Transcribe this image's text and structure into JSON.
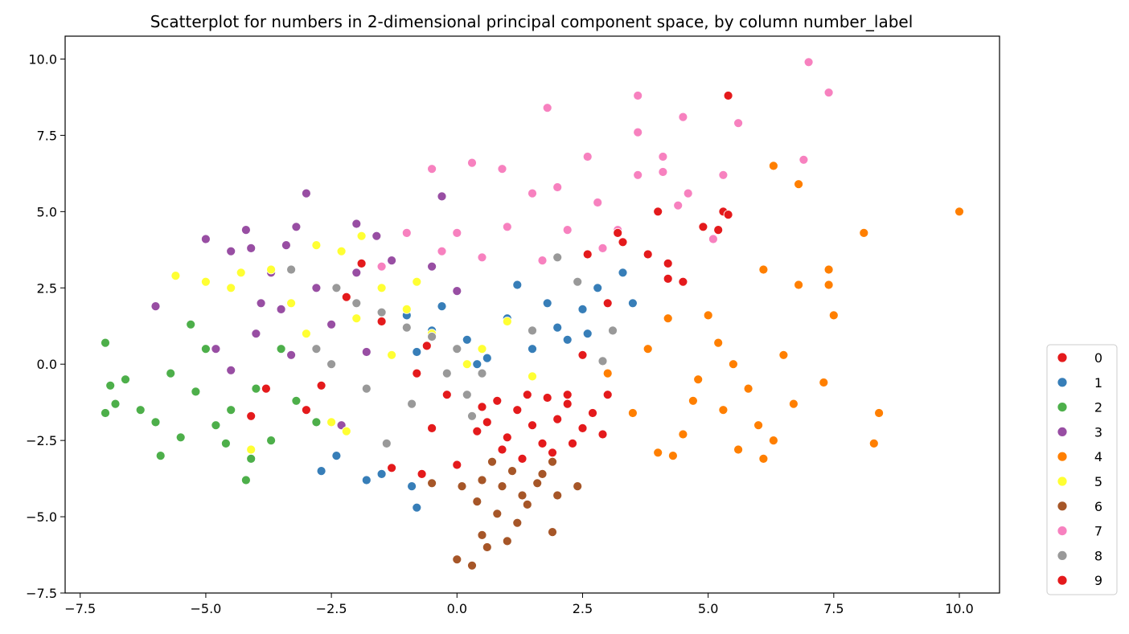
{
  "chart_data": {
    "type": "scatter",
    "title": "Scatterplot for numbers in 2-dimensional principal component space, by column number_label",
    "xlabel": "",
    "ylabel": "",
    "xlim": [
      -7.8,
      10.8
    ],
    "ylim": [
      -7.5,
      10.75
    ],
    "x_ticks": [
      -7.5,
      -5.0,
      -2.5,
      0.0,
      2.5,
      5.0,
      7.5,
      10.0
    ],
    "x_tick_labels": [
      "−7.5",
      "−5.0",
      "−2.5",
      "0.0",
      "2.5",
      "5.0",
      "7.5",
      "10.0"
    ],
    "y_ticks": [
      -7.5,
      -5.0,
      -2.5,
      0.0,
      2.5,
      5.0,
      7.5,
      10.0
    ],
    "y_tick_labels": [
      "−7.5",
      "−5.0",
      "−2.5",
      "0.0",
      "2.5",
      "5.0",
      "7.5",
      "10.0"
    ],
    "grid": false,
    "legend_position": "outside-right",
    "series": [
      {
        "name": "0",
        "color": "#e41a1c",
        "points": [
          [
            1.2,
            -1.5
          ],
          [
            1.5,
            -2.0
          ],
          [
            0.8,
            -1.2
          ],
          [
            2.0,
            -1.8
          ],
          [
            1.7,
            -2.6
          ],
          [
            0.6,
            -1.9
          ],
          [
            1.0,
            -2.4
          ],
          [
            2.2,
            -1.3
          ],
          [
            2.5,
            -2.1
          ],
          [
            1.4,
            -1.0
          ],
          [
            1.9,
            -2.9
          ],
          [
            0.9,
            -2.8
          ],
          [
            2.7,
            -1.6
          ],
          [
            0.5,
            -1.4
          ],
          [
            1.3,
            -3.1
          ],
          [
            2.3,
            -2.6
          ],
          [
            3.0,
            -1.0
          ],
          [
            0.4,
            -2.2
          ],
          [
            1.8,
            -1.1
          ],
          [
            2.9,
            -2.3
          ]
        ]
      },
      {
        "name": "1",
        "color": "#377eb8",
        "points": [
          [
            -0.5,
            1.1
          ],
          [
            0.2,
            0.8
          ],
          [
            1.0,
            1.5
          ],
          [
            1.5,
            0.5
          ],
          [
            2.0,
            1.2
          ],
          [
            2.5,
            1.8
          ],
          [
            -0.8,
            0.4
          ],
          [
            0.6,
            0.2
          ],
          [
            1.8,
            2.0
          ],
          [
            2.8,
            2.5
          ],
          [
            3.3,
            3.0
          ],
          [
            -1.0,
            1.6
          ],
          [
            -2.7,
            -3.5
          ],
          [
            -2.4,
            -3.0
          ],
          [
            -1.8,
            -3.8
          ],
          [
            -1.5,
            -3.6
          ],
          [
            -0.9,
            -4.0
          ],
          [
            -0.8,
            -4.7
          ],
          [
            0.4,
            0.0
          ],
          [
            2.2,
            0.8
          ],
          [
            3.5,
            2.0
          ],
          [
            1.2,
            2.6
          ],
          [
            -0.3,
            1.9
          ],
          [
            2.6,
            1.0
          ]
        ]
      },
      {
        "name": "2",
        "color": "#4daf4a",
        "points": [
          [
            -7.0,
            0.7
          ],
          [
            -6.9,
            -0.7
          ],
          [
            -7.0,
            -1.6
          ],
          [
            -6.6,
            -0.5
          ],
          [
            -6.0,
            -1.9
          ],
          [
            -5.9,
            -3.0
          ],
          [
            -5.5,
            -2.4
          ],
          [
            -5.0,
            0.5
          ],
          [
            -4.5,
            -1.5
          ],
          [
            -4.2,
            -3.8
          ],
          [
            -4.1,
            -3.1
          ],
          [
            -3.7,
            -2.5
          ],
          [
            -3.2,
            -1.2
          ],
          [
            -5.3,
            1.3
          ],
          [
            -4.0,
            -0.8
          ],
          [
            -6.3,
            -1.5
          ],
          [
            -5.7,
            -0.3
          ],
          [
            -4.8,
            -2.0
          ],
          [
            -3.5,
            0.5
          ],
          [
            -2.8,
            -1.9
          ],
          [
            -6.8,
            -1.3
          ],
          [
            -5.2,
            -0.9
          ],
          [
            -4.6,
            -2.6
          ]
        ]
      },
      {
        "name": "3",
        "color": "#984ea3",
        "points": [
          [
            -6.0,
            1.9
          ],
          [
            -5.0,
            4.1
          ],
          [
            -4.5,
            3.7
          ],
          [
            -4.2,
            4.4
          ],
          [
            -3.2,
            4.5
          ],
          [
            -3.0,
            5.6
          ],
          [
            -1.6,
            4.2
          ],
          [
            -2.8,
            2.5
          ],
          [
            -3.5,
            1.8
          ],
          [
            -4.0,
            1.0
          ],
          [
            -4.5,
            -0.2
          ],
          [
            -3.3,
            0.3
          ],
          [
            -2.5,
            1.3
          ],
          [
            -1.8,
            0.4
          ],
          [
            -3.7,
            3.0
          ],
          [
            -4.8,
            0.5
          ],
          [
            -2.0,
            3.0
          ],
          [
            -3.9,
            2.0
          ],
          [
            -2.3,
            -2.0
          ],
          [
            -2.0,
            4.6
          ],
          [
            -3.4,
            3.9
          ],
          [
            -4.1,
            3.8
          ],
          [
            -1.3,
            3.4
          ],
          [
            -0.5,
            3.2
          ],
          [
            0.0,
            2.4
          ],
          [
            -0.3,
            5.5
          ]
        ]
      },
      {
        "name": "4",
        "color": "#ff7f00",
        "points": [
          [
            10.0,
            5.0
          ],
          [
            8.1,
            4.3
          ],
          [
            7.4,
            3.1
          ],
          [
            7.4,
            2.6
          ],
          [
            7.5,
            1.6
          ],
          [
            6.8,
            2.6
          ],
          [
            6.8,
            5.9
          ],
          [
            6.3,
            6.5
          ],
          [
            6.1,
            3.1
          ],
          [
            5.0,
            1.6
          ],
          [
            5.5,
            0.0
          ],
          [
            4.8,
            -0.5
          ],
          [
            5.3,
            -1.5
          ],
          [
            6.0,
            -2.0
          ],
          [
            6.3,
            -2.5
          ],
          [
            5.6,
            -2.8
          ],
          [
            4.5,
            -2.3
          ],
          [
            4.0,
            -2.9
          ],
          [
            8.3,
            -2.6
          ],
          [
            8.4,
            -1.6
          ],
          [
            7.3,
            -0.6
          ],
          [
            6.7,
            -1.3
          ],
          [
            4.2,
            1.5
          ],
          [
            3.8,
            0.5
          ],
          [
            3.5,
            -1.6
          ],
          [
            4.7,
            -1.2
          ],
          [
            5.8,
            -0.8
          ],
          [
            6.1,
            -3.1
          ],
          [
            3.0,
            -0.3
          ],
          [
            4.3,
            -3.0
          ],
          [
            5.2,
            0.7
          ],
          [
            6.5,
            0.3
          ]
        ]
      },
      {
        "name": "5",
        "color": "#ffff33",
        "points": [
          [
            -5.6,
            2.9
          ],
          [
            -5.0,
            2.7
          ],
          [
            -4.5,
            2.5
          ],
          [
            -4.3,
            3.0
          ],
          [
            -3.7,
            3.1
          ],
          [
            -2.8,
            3.9
          ],
          [
            -2.3,
            3.7
          ],
          [
            -1.9,
            4.2
          ],
          [
            -1.5,
            2.5
          ],
          [
            -1.0,
            1.8
          ],
          [
            -0.5,
            1.0
          ],
          [
            0.5,
            0.5
          ],
          [
            1.5,
            -0.4
          ],
          [
            -2.5,
            -1.9
          ],
          [
            -2.2,
            -2.2
          ],
          [
            -4.1,
            -2.8
          ],
          [
            -3.3,
            2.0
          ],
          [
            -2.0,
            1.5
          ],
          [
            0.2,
            0.0
          ],
          [
            -0.8,
            2.7
          ],
          [
            -3.0,
            1.0
          ],
          [
            -1.3,
            0.3
          ],
          [
            1.0,
            1.4
          ]
        ]
      },
      {
        "name": "6",
        "color": "#a65628",
        "points": [
          [
            0.3,
            -6.6
          ],
          [
            0.0,
            -6.4
          ],
          [
            0.5,
            -5.6
          ],
          [
            1.2,
            -5.2
          ],
          [
            1.9,
            -5.5
          ],
          [
            0.4,
            -4.5
          ],
          [
            0.8,
            -4.9
          ],
          [
            1.3,
            -4.3
          ],
          [
            1.6,
            -3.9
          ],
          [
            1.9,
            -3.2
          ],
          [
            2.4,
            -4.0
          ],
          [
            0.1,
            -4.0
          ],
          [
            0.5,
            -3.8
          ],
          [
            1.1,
            -3.5
          ],
          [
            1.4,
            -4.6
          ],
          [
            2.0,
            -4.3
          ],
          [
            0.7,
            -3.2
          ],
          [
            -0.5,
            -3.9
          ],
          [
            1.0,
            -5.8
          ],
          [
            0.6,
            -6.0
          ],
          [
            0.9,
            -4.0
          ],
          [
            1.7,
            -3.6
          ]
        ]
      },
      {
        "name": "7",
        "color": "#f781bf",
        "points": [
          [
            7.0,
            9.9
          ],
          [
            7.4,
            8.9
          ],
          [
            5.6,
            7.9
          ],
          [
            4.5,
            8.1
          ],
          [
            3.6,
            8.8
          ],
          [
            3.6,
            7.6
          ],
          [
            1.8,
            8.4
          ],
          [
            2.6,
            6.8
          ],
          [
            3.6,
            6.2
          ],
          [
            4.1,
            6.8
          ],
          [
            4.1,
            6.3
          ],
          [
            5.3,
            6.2
          ],
          [
            6.9,
            6.7
          ],
          [
            4.6,
            5.6
          ],
          [
            5.1,
            4.1
          ],
          [
            4.4,
            5.2
          ],
          [
            0.3,
            6.6
          ],
          [
            -0.5,
            6.4
          ],
          [
            0.9,
            6.4
          ],
          [
            1.5,
            5.6
          ],
          [
            2.0,
            5.8
          ],
          [
            2.8,
            5.3
          ],
          [
            0.0,
            4.3
          ],
          [
            -1.0,
            4.3
          ],
          [
            -1.5,
            3.2
          ],
          [
            0.5,
            3.5
          ],
          [
            1.0,
            4.5
          ],
          [
            2.2,
            4.4
          ],
          [
            3.2,
            4.4
          ],
          [
            -0.3,
            3.7
          ],
          [
            1.7,
            3.4
          ],
          [
            2.9,
            3.8
          ]
        ]
      },
      {
        "name": "8",
        "color": "#999999",
        "points": [
          [
            -3.3,
            3.1
          ],
          [
            -2.4,
            2.5
          ],
          [
            -2.0,
            2.0
          ],
          [
            -1.5,
            1.7
          ],
          [
            -1.0,
            1.2
          ],
          [
            -0.5,
            0.9
          ],
          [
            0.0,
            0.5
          ],
          [
            0.5,
            -0.3
          ],
          [
            0.2,
            -1.0
          ],
          [
            -1.4,
            -2.6
          ],
          [
            -0.9,
            -1.3
          ],
          [
            2.0,
            3.5
          ],
          [
            2.4,
            2.7
          ],
          [
            3.1,
            1.1
          ],
          [
            2.9,
            0.1
          ],
          [
            -2.8,
            0.5
          ],
          [
            -1.8,
            -0.8
          ],
          [
            0.3,
            -1.7
          ],
          [
            1.5,
            1.1
          ],
          [
            -0.2,
            -0.3
          ],
          [
            -2.5,
            0.0
          ]
        ]
      },
      {
        "name": "9",
        "color": "#e41a1c",
        "points": [
          [
            5.4,
            8.8
          ],
          [
            5.3,
            5.0
          ],
          [
            5.4,
            4.9
          ],
          [
            4.0,
            5.0
          ],
          [
            3.2,
            4.3
          ],
          [
            3.3,
            4.0
          ],
          [
            3.8,
            3.6
          ],
          [
            4.2,
            3.3
          ],
          [
            4.5,
            2.7
          ],
          [
            4.2,
            2.8
          ],
          [
            3.0,
            2.0
          ],
          [
            2.6,
            3.6
          ],
          [
            4.9,
            4.5
          ],
          [
            5.2,
            4.4
          ],
          [
            -1.9,
            3.3
          ],
          [
            -2.2,
            2.2
          ],
          [
            -1.5,
            1.4
          ],
          [
            -0.6,
            0.6
          ],
          [
            -0.8,
            -0.3
          ],
          [
            -3.0,
            -1.5
          ],
          [
            -4.1,
            -1.7
          ],
          [
            -3.8,
            -0.8
          ],
          [
            -1.3,
            -3.4
          ],
          [
            -0.7,
            -3.6
          ],
          [
            0.0,
            -3.3
          ],
          [
            2.2,
            -1.0
          ],
          [
            2.5,
            0.3
          ],
          [
            -0.2,
            -1.0
          ],
          [
            -2.7,
            -0.7
          ],
          [
            -0.5,
            -2.1
          ]
        ]
      }
    ]
  }
}
